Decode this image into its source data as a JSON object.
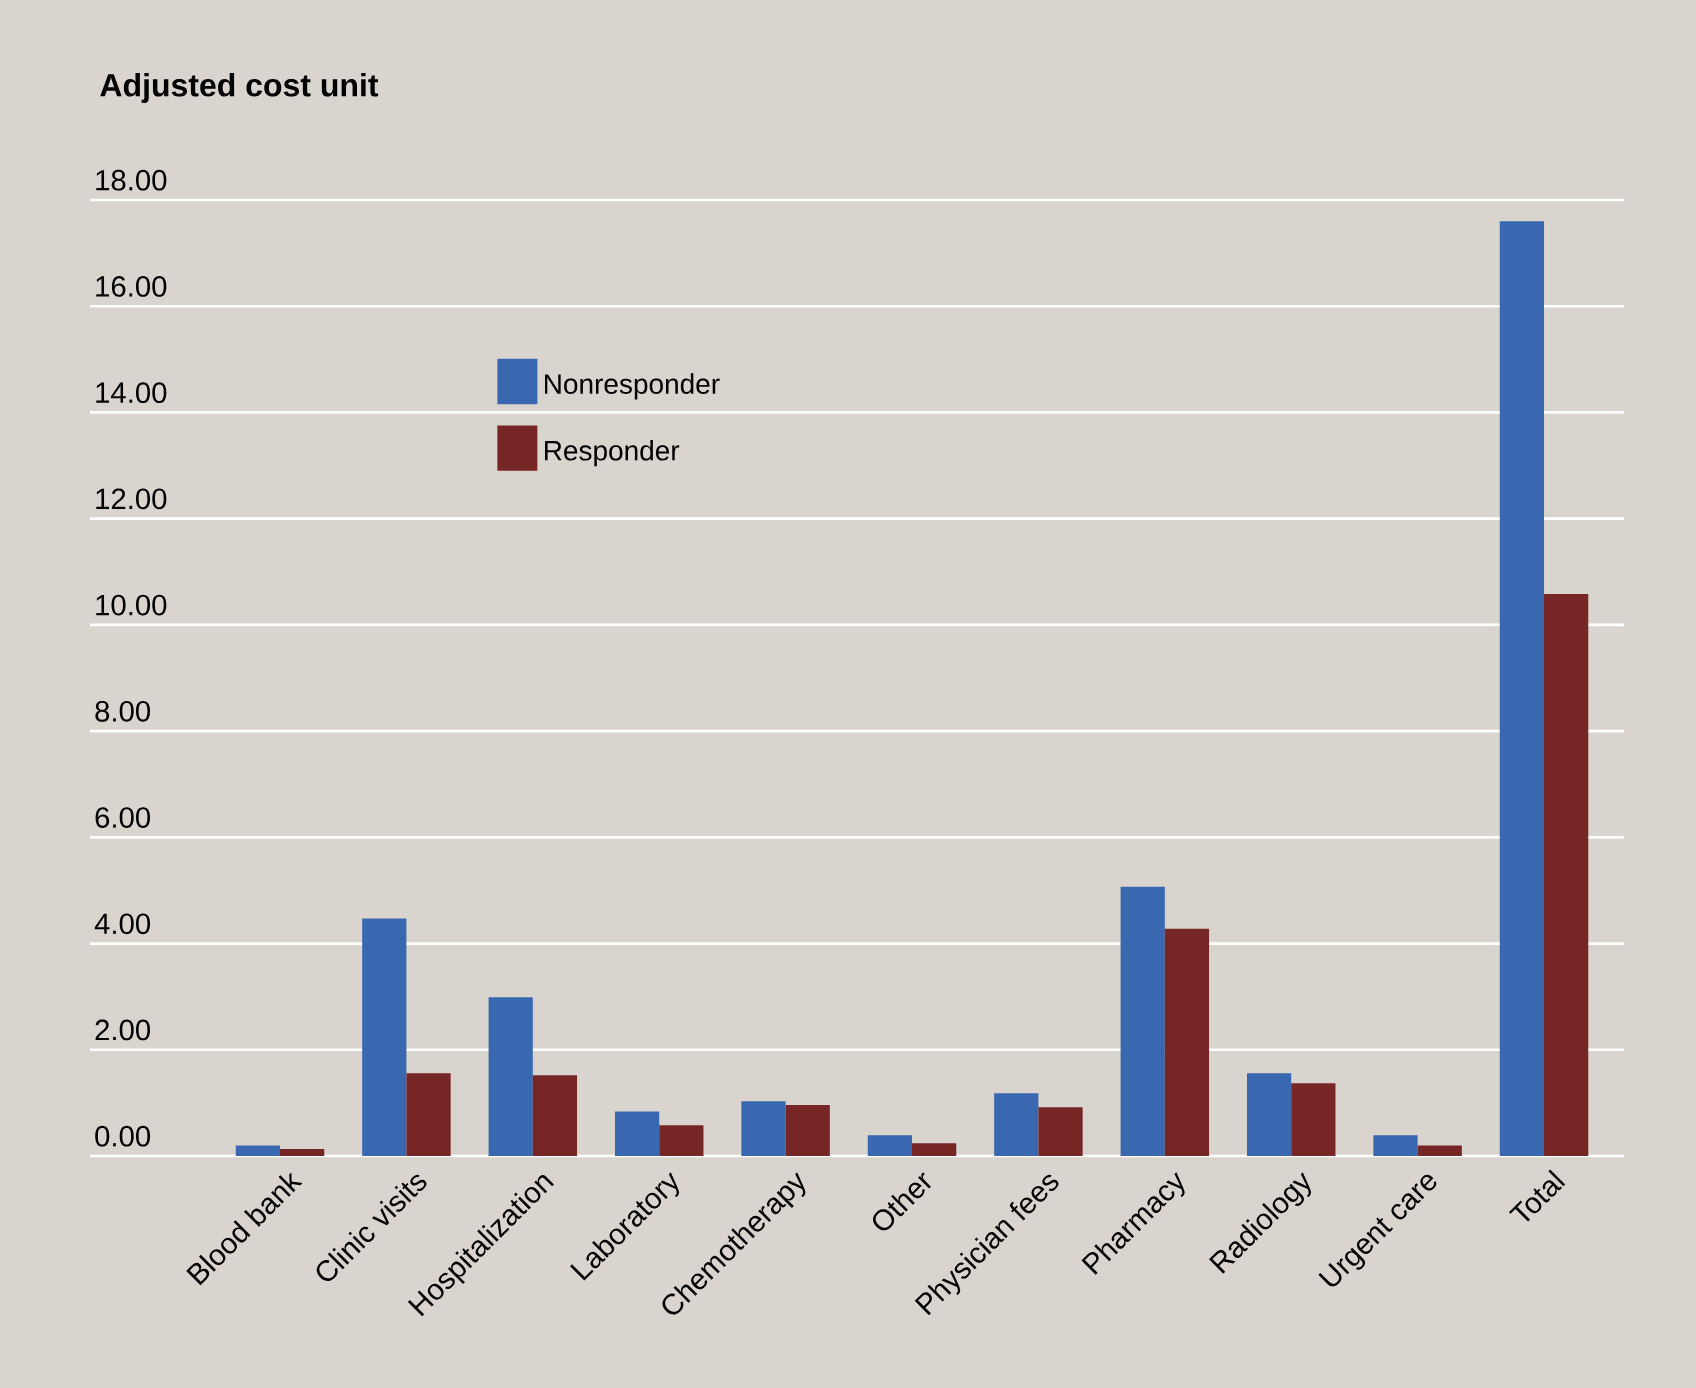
{
  "chart_data": {
    "type": "bar",
    "title": "Adjusted cost unit",
    "categories": [
      "Blood bank",
      "Clinic visits",
      "Hospitalization",
      "Laboratory",
      "Chemotherapy",
      "Other",
      "Physician fees",
      "Pharmacy",
      "Radiology",
      "Urgent care",
      "Total"
    ],
    "series": [
      {
        "name": "Nonresponder",
        "color": "#3a68b0",
        "values": [
          0.2,
          4.47,
          2.99,
          0.84,
          1.03,
          0.39,
          1.18,
          5.07,
          1.56,
          0.39,
          17.6
        ]
      },
      {
        "name": "Responder",
        "color": "#772626",
        "values": [
          0.13,
          1.56,
          1.52,
          0.58,
          0.96,
          0.24,
          0.92,
          4.28,
          1.37,
          0.2,
          10.58
        ]
      }
    ],
    "ylim": [
      0,
      18
    ],
    "yticks": [
      {
        "value": 0,
        "label": "0.00"
      },
      {
        "value": 2,
        "label": "2.00"
      },
      {
        "value": 4,
        "label": "4.00"
      },
      {
        "value": 6,
        "label": "6.00"
      },
      {
        "value": 8,
        "label": "8.00"
      },
      {
        "value": 10,
        "label": "10.00"
      },
      {
        "value": 12,
        "label": "12.00"
      },
      {
        "value": 14,
        "label": "14.00"
      },
      {
        "value": 16,
        "label": "16.00"
      },
      {
        "value": 18,
        "label": "18.00"
      }
    ],
    "grid": "y",
    "legend": "top left"
  }
}
